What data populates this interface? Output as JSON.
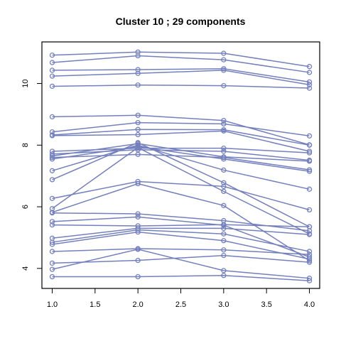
{
  "chart_data": {
    "type": "line",
    "title": "Cluster 10 ; 29 components",
    "xlabel": "",
    "ylabel": "",
    "xlim": [
      0.88,
      4.12
    ],
    "ylim": [
      3.35,
      11.35
    ],
    "x_ticks": [
      1.0,
      1.5,
      2.0,
      2.5,
      3.0,
      3.5,
      4.0
    ],
    "x_tick_labels": [
      "1.0",
      "1.5",
      "2.0",
      "2.5",
      "3.0",
      "3.5",
      "4.0"
    ],
    "y_ticks": [
      4,
      6,
      8,
      10
    ],
    "y_tick_labels": [
      "4",
      "6",
      "8",
      "10"
    ],
    "color": "#7480BD",
    "x": [
      1,
      2,
      3,
      4
    ],
    "series": [
      {
        "values": [
          10.92,
          11.02,
          10.98,
          10.55
        ]
      },
      {
        "values": [
          10.68,
          10.9,
          10.77,
          10.36
        ]
      },
      {
        "values": [
          10.43,
          10.45,
          10.48,
          10.05
        ]
      },
      {
        "values": [
          10.24,
          10.33,
          10.43,
          9.96
        ]
      },
      {
        "values": [
          9.91,
          9.95,
          9.93,
          9.85
        ]
      },
      {
        "values": [
          8.92,
          8.97,
          8.8,
          8.01
        ]
      },
      {
        "values": [
          8.43,
          8.73,
          8.69,
          8.3
        ]
      },
      {
        "values": [
          8.33,
          8.51,
          8.5,
          8.0
        ]
      },
      {
        "values": [
          8.31,
          8.34,
          8.46,
          7.8
        ]
      },
      {
        "values": [
          7.8,
          7.9,
          7.9,
          7.75
        ]
      },
      {
        "values": [
          7.71,
          7.85,
          7.8,
          7.51
        ]
      },
      {
        "values": [
          7.65,
          8.05,
          7.62,
          7.48
        ]
      },
      {
        "values": [
          7.6,
          7.7,
          7.6,
          7.2
        ]
      },
      {
        "values": [
          7.55,
          7.95,
          7.55,
          7.15
        ]
      },
      {
        "values": [
          7.17,
          8.0,
          7.19,
          6.57
        ]
      },
      {
        "values": [
          6.88,
          8.08,
          6.78,
          5.35
        ]
      },
      {
        "values": [
          6.27,
          6.82,
          6.66,
          5.9
        ]
      },
      {
        "values": [
          5.94,
          7.92,
          6.5,
          5.12
        ]
      },
      {
        "values": [
          5.82,
          6.75,
          6.04,
          4.25
        ]
      },
      {
        "values": [
          5.8,
          5.77,
          5.55,
          5.22
        ]
      },
      {
        "values": [
          5.52,
          5.67,
          5.4,
          4.37
        ]
      },
      {
        "values": [
          5.41,
          5.38,
          5.42,
          5.35
        ]
      },
      {
        "values": [
          4.98,
          5.3,
          5.3,
          5.1
        ]
      },
      {
        "values": [
          4.85,
          5.25,
          5.12,
          4.55
        ]
      },
      {
        "values": [
          4.78,
          5.18,
          4.9,
          4.3
        ]
      },
      {
        "values": [
          4.55,
          4.64,
          4.6,
          4.45
        ]
      },
      {
        "values": [
          4.17,
          4.26,
          4.42,
          4.2
        ]
      },
      {
        "values": [
          3.97,
          4.62,
          3.93,
          3.68
        ]
      },
      {
        "values": [
          3.73,
          3.73,
          3.77,
          3.6
        ]
      }
    ]
  }
}
